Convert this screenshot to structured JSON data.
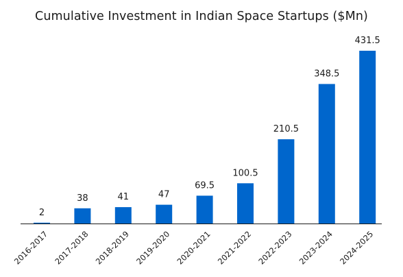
{
  "chart_data": {
    "type": "bar",
    "title": "Cumulative Investment in Indian Space Startups ($Mn)",
    "xlabel": "",
    "ylabel": "",
    "categories": [
      "2016-2017",
      "2017-2018",
      "2018-2019",
      "2019-2020",
      "2020-2021",
      "2021-2022",
      "2022-2023",
      "2023-2024",
      "2024-2025"
    ],
    "values": [
      2,
      38,
      41,
      47,
      69.5,
      100.5,
      210.5,
      348.5,
      431.5
    ],
    "data_labels": [
      "2",
      "38",
      "41",
      "47",
      "69.5",
      "100.5",
      "210.5",
      "348.5",
      "431.5"
    ],
    "ylim": [
      0,
      431.5
    ],
    "grid": false,
    "legend": "none",
    "colors": {
      "bar": "#0066cc",
      "axis": "#1a1a1a",
      "text": "#1a1a1a"
    }
  }
}
